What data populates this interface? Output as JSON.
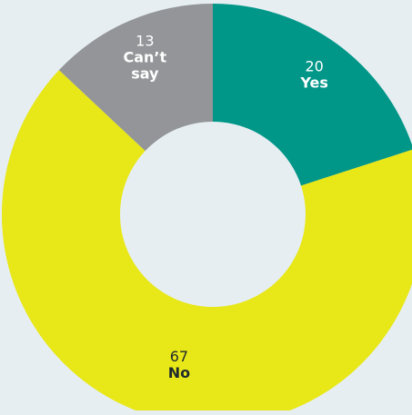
{
  "chart_data": {
    "type": "pie",
    "variant": "donut",
    "title": "",
    "slices": [
      {
        "label": "Yes",
        "value": 20,
        "color": "#009688",
        "text_color": "#ffffff"
      },
      {
        "label": "No",
        "value": 67,
        "color": "#e8e717",
        "text_color": "#1f2a2e"
      },
      {
        "label": "Can’t say",
        "value": 13,
        "color": "#939598",
        "text_color": "#ffffff"
      }
    ]
  },
  "colors": {
    "background": "#e6eef1",
    "hole": "#e6eef1"
  }
}
